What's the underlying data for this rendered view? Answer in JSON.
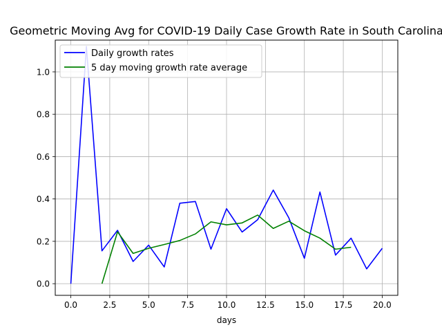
{
  "chart_data": {
    "type": "line",
    "title": "Geometric Moving Avg for COVID-19 Daily Case Growth Rate in South Carolina",
    "xlabel": "days",
    "ylabel": "",
    "xlim": [
      -1.0,
      21.0
    ],
    "ylim": [
      -0.055,
      1.15
    ],
    "xticks": [
      0.0,
      2.5,
      5.0,
      7.5,
      10.0,
      12.5,
      15.0,
      17.5,
      20.0
    ],
    "xtick_labels": [
      "0.0",
      "2.5",
      "5.0",
      "7.5",
      "10.0",
      "12.5",
      "15.0",
      "17.5",
      "20.0"
    ],
    "yticks": [
      0.0,
      0.2,
      0.4,
      0.6,
      0.8,
      1.0
    ],
    "ytick_labels": [
      "0.0",
      "0.2",
      "0.4",
      "0.6",
      "0.8",
      "1.0"
    ],
    "grid": true,
    "legend_position": "upper-left",
    "series": [
      {
        "name": "Daily growth rates",
        "color": "#0000ff",
        "x": [
          0,
          1,
          2,
          3,
          4,
          5,
          6,
          7,
          8,
          9,
          10,
          11,
          12,
          13,
          14,
          15,
          16,
          17,
          18,
          19,
          20
        ],
        "values": [
          0.0,
          1.12,
          0.155,
          0.252,
          0.105,
          0.182,
          0.079,
          0.38,
          0.388,
          0.163,
          0.354,
          0.244,
          0.302,
          0.442,
          0.311,
          0.12,
          0.433,
          0.135,
          0.215,
          0.07,
          0.167
        ]
      },
      {
        "name": "5 day moving growth rate average",
        "color": "#008000",
        "x": [
          2,
          3,
          4,
          5,
          6,
          7,
          8,
          9,
          10,
          11,
          12,
          13,
          14,
          15,
          16,
          17,
          18
        ],
        "values": [
          0.0,
          0.245,
          0.143,
          0.167,
          0.185,
          0.204,
          0.235,
          0.292,
          0.278,
          0.287,
          0.324,
          0.261,
          0.295,
          0.25,
          0.215,
          0.163,
          0.172
        ]
      }
    ]
  }
}
